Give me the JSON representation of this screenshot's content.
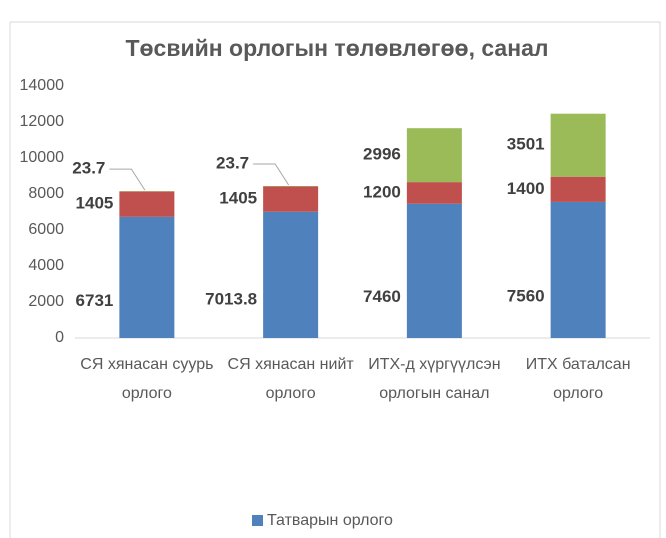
{
  "chart_data": {
    "type": "stacked_bar",
    "title": "Төсвийн орлогын төлөвлөгөө, санал",
    "categories": [
      "СЯ хянасан суурь орлого",
      "СЯ хянасан нийт орлого",
      "ИТХ-д хүргүүлсэн орлогын санал",
      "ИТХ баталсан орлого"
    ],
    "series": [
      {
        "name": "Татварын орлого",
        "color": "#4f81bd",
        "values": [
          6731,
          7013.8,
          7460,
          7560
        ]
      },
      {
        "color": "#c0504d",
        "values": [
          1405,
          1405,
          1200,
          1400
        ]
      },
      {
        "color": "#9bbb59",
        "values": [
          23.7,
          23.7,
          2996,
          3501
        ]
      }
    ],
    "ylim": [
      0,
      14000
    ],
    "yticks": [
      0,
      2000,
      4000,
      6000,
      8000,
      10000,
      12000,
      14000
    ],
    "grid": false,
    "legend": "bottom"
  }
}
